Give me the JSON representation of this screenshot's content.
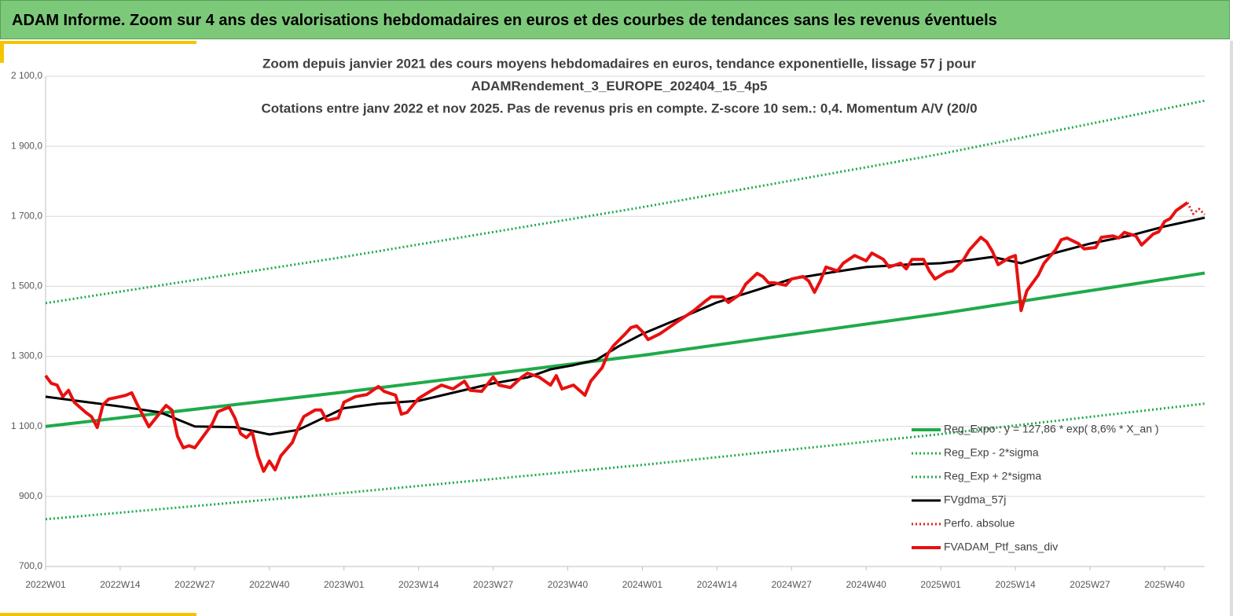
{
  "header": {
    "title": "ADAM Informe. Zoom sur 4 ans des valorisations hebdomadaires en euros et des courbes de tendances sans les revenus éventuels"
  },
  "chart_data": {
    "type": "line",
    "title": [
      "Zoom depuis janvier 2021 des cours moyens hebdomadaires  en euros, tendance exponentielle, lissage 57 j pour",
      "ADAMRendement_3_EUROPE_202404_15_4p5",
      "Cotations  entre janv 2022 et nov 2025. Pas de revenus pris en compte. Z-score 10 sem.: 0,4. Momentum A/V (20/0"
    ],
    "xlim": [
      0,
      202
    ],
    "xticks": [
      {
        "value": 0,
        "label": "2022W01"
      },
      {
        "value": 13,
        "label": "2022W14"
      },
      {
        "value": 26,
        "label": "2022W27"
      },
      {
        "value": 39,
        "label": "2022W40"
      },
      {
        "value": 52,
        "label": "2023W01"
      },
      {
        "value": 65,
        "label": "2023W14"
      },
      {
        "value": 78,
        "label": "2023W27"
      },
      {
        "value": 91,
        "label": "2023W40"
      },
      {
        "value": 104,
        "label": "2024W01"
      },
      {
        "value": 117,
        "label": "2024W14"
      },
      {
        "value": 130,
        "label": "2024W27"
      },
      {
        "value": 143,
        "label": "2024W40"
      },
      {
        "value": 156,
        "label": "2025W01"
      },
      {
        "value": 169,
        "label": "2025W14"
      },
      {
        "value": 182,
        "label": "2025W27"
      },
      {
        "value": 195,
        "label": "2025W40"
      }
    ],
    "ylim": [
      700,
      2100
    ],
    "yticks": [
      {
        "value": 700,
        "label": "700,0"
      },
      {
        "value": 900,
        "label": "900,0"
      },
      {
        "value": 1100,
        "label": "1 100,0"
      },
      {
        "value": 1300,
        "label": "1 300,0"
      },
      {
        "value": 1500,
        "label": "1 500,0"
      },
      {
        "value": 1700,
        "label": "1 700,0"
      },
      {
        "value": 1900,
        "label": "1 900,0"
      },
      {
        "value": 2100,
        "label": "2 100,0"
      }
    ],
    "grid": true,
    "legend": "lower right",
    "series": [
      {
        "name": "Reg_Expo : y = 127,86 * exp( 8,6% *  X_an )",
        "color": "#1faa4a",
        "style": "solid",
        "x": [
          0,
          52,
          104,
          156,
          202
        ],
        "values": [
          1100,
          1198,
          1303,
          1422,
          1538
        ]
      },
      {
        "name": "Reg_Exp - 2*sigma",
        "color": "#1faa4a",
        "style": "dotted",
        "x": [
          0,
          52,
          104,
          156,
          202
        ],
        "values": [
          835,
          910,
          990,
          1078,
          1165
        ]
      },
      {
        "name": "Reg_Exp + 2*sigma",
        "color": "#1faa4a",
        "style": "dotted",
        "x": [
          0,
          52,
          104,
          156,
          202
        ],
        "values": [
          1452,
          1584,
          1726,
          1878,
          2030
        ]
      },
      {
        "name": "FVgdma_57j",
        "color": "#000000",
        "style": "solid",
        "x": [
          0,
          6,
          13,
          20,
          26,
          33,
          39,
          44,
          52,
          58,
          65,
          72,
          78,
          84,
          88,
          92,
          96,
          100,
          104,
          110,
          117,
          124,
          130,
          137,
          143,
          150,
          156,
          161,
          165,
          170,
          176,
          182,
          189,
          195,
          202
        ],
        "values": [
          1185,
          1172,
          1157,
          1140,
          1100,
          1098,
          1077,
          1090,
          1152,
          1165,
          1173,
          1200,
          1223,
          1240,
          1263,
          1275,
          1290,
          1330,
          1364,
          1405,
          1454,
          1490,
          1521,
          1540,
          1555,
          1562,
          1566,
          1575,
          1584,
          1566,
          1596,
          1622,
          1645,
          1671,
          1696
        ]
      },
      {
        "name": "Perfo. absolue",
        "color": "#e02020",
        "style": "dotted",
        "x": [
          199,
          200,
          201,
          202
        ],
        "values": [
          1739,
          1707,
          1721,
          1705
        ]
      },
      {
        "name": "FVADAM_Ptf_sans_div",
        "color": "#e81010",
        "style": "solid",
        "x": [
          0,
          1,
          2,
          3,
          4,
          5,
          7,
          8,
          9,
          10,
          11,
          13,
          14,
          15,
          16,
          18,
          20,
          21,
          22,
          23,
          24,
          25,
          26,
          27,
          29,
          30,
          32,
          33,
          34,
          35,
          36,
          37,
          38,
          39,
          40,
          41,
          43,
          44,
          45,
          47,
          48,
          49,
          51,
          52,
          54,
          56,
          58,
          59,
          61,
          62,
          63,
          65,
          67,
          69,
          71,
          73,
          74,
          76,
          78,
          79,
          81,
          83,
          84,
          86,
          88,
          89,
          90,
          92,
          94,
          95,
          97,
          98,
          99,
          101,
          102,
          103,
          104,
          105,
          107,
          108,
          110,
          111,
          113,
          115,
          116,
          118,
          119,
          121,
          122,
          124,
          125,
          126,
          127,
          129,
          130,
          132,
          133,
          134,
          135,
          136,
          138,
          139,
          141,
          143,
          144,
          146,
          147,
          149,
          150,
          151,
          153,
          154,
          155,
          157,
          158,
          160,
          161,
          163,
          164,
          165,
          166,
          168,
          169,
          170,
          171,
          173,
          174,
          176,
          177,
          178,
          180,
          181,
          183,
          184,
          186,
          187,
          188,
          190,
          191,
          193,
          194,
          195,
          196,
          197,
          199
        ],
        "values": [
          1245,
          1223,
          1218,
          1185,
          1203,
          1169,
          1140,
          1128,
          1097,
          1162,
          1178,
          1185,
          1189,
          1196,
          1162,
          1099,
          1140,
          1160,
          1147,
          1072,
          1039,
          1045,
          1039,
          1061,
          1106,
          1142,
          1155,
          1124,
          1079,
          1068,
          1084,
          1016,
          972,
          1001,
          976,
          1016,
          1054,
          1095,
          1128,
          1147,
          1147,
          1117,
          1124,
          1169,
          1185,
          1191,
          1214,
          1200,
          1189,
          1135,
          1140,
          1180,
          1200,
          1218,
          1207,
          1229,
          1203,
          1200,
          1241,
          1218,
          1211,
          1241,
          1252,
          1241,
          1218,
          1245,
          1207,
          1218,
          1189,
          1229,
          1268,
          1308,
          1331,
          1364,
          1382,
          1387,
          1371,
          1348,
          1364,
          1375,
          1398,
          1409,
          1431,
          1458,
          1470,
          1470,
          1454,
          1477,
          1506,
          1537,
          1528,
          1510,
          1510,
          1503,
          1521,
          1528,
          1515,
          1483,
          1515,
          1555,
          1544,
          1566,
          1588,
          1573,
          1595,
          1577,
          1555,
          1566,
          1550,
          1577,
          1577,
          1544,
          1521,
          1541,
          1544,
          1577,
          1604,
          1640,
          1627,
          1600,
          1562,
          1582,
          1588,
          1431,
          1487,
          1532,
          1566,
          1604,
          1633,
          1638,
          1622,
          1607,
          1611,
          1640,
          1644,
          1638,
          1654,
          1644,
          1618,
          1649,
          1656,
          1685,
          1694,
          1716,
          1739
        ]
      }
    ]
  }
}
